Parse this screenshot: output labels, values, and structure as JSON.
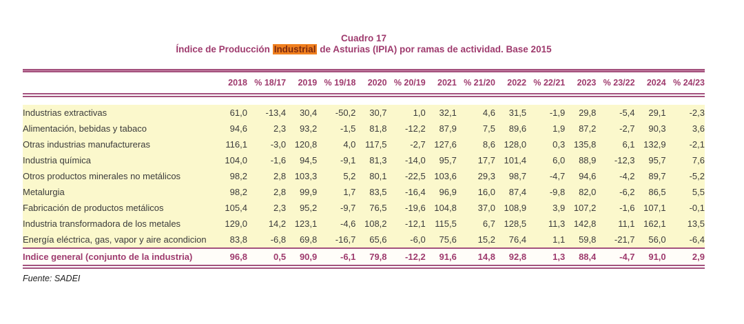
{
  "title": {
    "cuadro": "Cuadro 17",
    "line_pre": "Índice de Producción ",
    "highlight": "Industrial",
    "line_post": " de Asturias (IPIA) por ramas de actividad. Base 2015"
  },
  "table": {
    "columns": [
      "2018",
      "% 18/17",
      "2019",
      "% 19/18",
      "2020",
      "% 20/19",
      "2021",
      "% 21/20",
      "2022",
      "% 22/21",
      "2023",
      "% 23/22",
      "2024",
      "% 24/23"
    ],
    "rows": [
      {
        "label": "Industrias extractivas",
        "values": [
          "61,0",
          "-13,4",
          "30,4",
          "-50,2",
          "30,7",
          "1,0",
          "32,1",
          "4,6",
          "31,5",
          "-1,9",
          "29,8",
          "-5,4",
          "29,1",
          "-2,3"
        ]
      },
      {
        "label": "Alimentación, bebidas y tabaco",
        "values": [
          "94,6",
          "2,3",
          "93,2",
          "-1,5",
          "81,8",
          "-12,2",
          "87,9",
          "7,5",
          "89,6",
          "1,9",
          "87,2",
          "-2,7",
          "90,3",
          "3,6"
        ]
      },
      {
        "label": "Otras industrias manufactureras",
        "values": [
          "116,1",
          "-3,0",
          "120,8",
          "4,0",
          "117,5",
          "-2,7",
          "127,6",
          "8,6",
          "128,0",
          "0,3",
          "135,8",
          "6,1",
          "132,9",
          "-2,1"
        ]
      },
      {
        "label": "Industria química",
        "values": [
          "104,0",
          "-1,6",
          "94,5",
          "-9,1",
          "81,3",
          "-14,0",
          "95,7",
          "17,7",
          "101,4",
          "6,0",
          "88,9",
          "-12,3",
          "95,7",
          "7,6"
        ]
      },
      {
        "label": "Otros productos minerales no metálicos",
        "values": [
          "98,2",
          "2,8",
          "103,3",
          "5,2",
          "80,1",
          "-22,5",
          "103,6",
          "29,3",
          "98,7",
          "-4,7",
          "94,6",
          "-4,2",
          "89,7",
          "-5,2"
        ]
      },
      {
        "label": "Metalurgia",
        "values": [
          "98,2",
          "2,8",
          "99,9",
          "1,7",
          "83,5",
          "-16,4",
          "96,9",
          "16,0",
          "87,4",
          "-9,8",
          "82,0",
          "-6,2",
          "86,5",
          "5,5"
        ]
      },
      {
        "label": "Fabricación de productos metálicos",
        "values": [
          "105,4",
          "2,3",
          "95,2",
          "-9,7",
          "76,5",
          "-19,6",
          "104,8",
          "37,0",
          "108,9",
          "3,9",
          "107,2",
          "-1,6",
          "107,1",
          "-0,1"
        ]
      },
      {
        "label": "Industria transformadora de los metales",
        "values": [
          "129,0",
          "14,2",
          "123,1",
          "-4,6",
          "108,2",
          "-12,1",
          "115,5",
          "6,7",
          "128,5",
          "11,3",
          "142,8",
          "11,1",
          "162,1",
          "13,5"
        ]
      },
      {
        "label": "Energía eléctrica, gas, vapor  y aire acondicion",
        "values": [
          "83,8",
          "-6,8",
          "69,8",
          "-16,7",
          "65,6",
          "-6,0",
          "75,6",
          "15,2",
          "76,4",
          "1,1",
          "59,8",
          "-21,7",
          "56,0",
          "-6,4"
        ]
      }
    ],
    "total": {
      "label": "Indice general (conjunto de la industria)",
      "values": [
        "96,8",
        "0,5",
        "90,9",
        "-6,1",
        "79,8",
        "-12,2",
        "91,6",
        "14,8",
        "92,8",
        "1,3",
        "88,4",
        "-4,7",
        "91,0",
        "2,9"
      ]
    }
  },
  "footer": {
    "source": "Fuente: SADEI"
  },
  "colors": {
    "accent_line": "#a3517d",
    "header_text": "#9e3a6d",
    "highlight_bg": "#f0801f",
    "highlight_text": "#7c2a10",
    "row_bg": "#fbf8cc",
    "body_text": "#3b3b3b"
  }
}
